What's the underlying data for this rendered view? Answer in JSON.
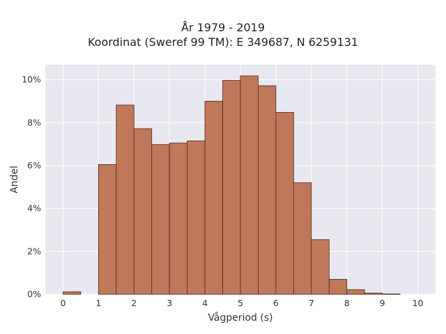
{
  "chart_data": {
    "type": "bar",
    "title": "År 1979 - 2019",
    "subtitle": "Koordinat (Sweref 99 TM): E 349687, N 6259131",
    "xlabel": "Vågperiod (s)",
    "ylabel": "Andel",
    "bin_width": 0.5,
    "bin_starts": [
      0,
      0.5,
      1,
      1.5,
      2,
      2.5,
      3,
      3.5,
      4,
      4.5,
      5,
      5.5,
      6,
      6.5,
      7,
      7.5,
      8,
      8.5,
      9,
      9.5
    ],
    "values": [
      0.12,
      0,
      6.05,
      8.82,
      7.72,
      6.98,
      7.05,
      7.15,
      9.0,
      9.97,
      10.18,
      9.72,
      8.48,
      5.2,
      2.55,
      0.7,
      0.22,
      0.06,
      0.02,
      0
    ],
    "xlim": [
      -0.5,
      10.5
    ],
    "ylim": [
      0,
      10.7
    ],
    "x_ticks": [
      "0",
      "1",
      "2",
      "3",
      "4",
      "5",
      "6",
      "7",
      "8",
      "9",
      "10"
    ],
    "y_ticks": [
      "0%",
      "2%",
      "4%",
      "6%",
      "8%",
      "10%"
    ],
    "grid": true,
    "colors": {
      "bar_fill": "#c0785a",
      "bar_edge": "#4a2a1c",
      "plot_bg": "#e8e8f0",
      "grid": "#ffffff"
    }
  }
}
